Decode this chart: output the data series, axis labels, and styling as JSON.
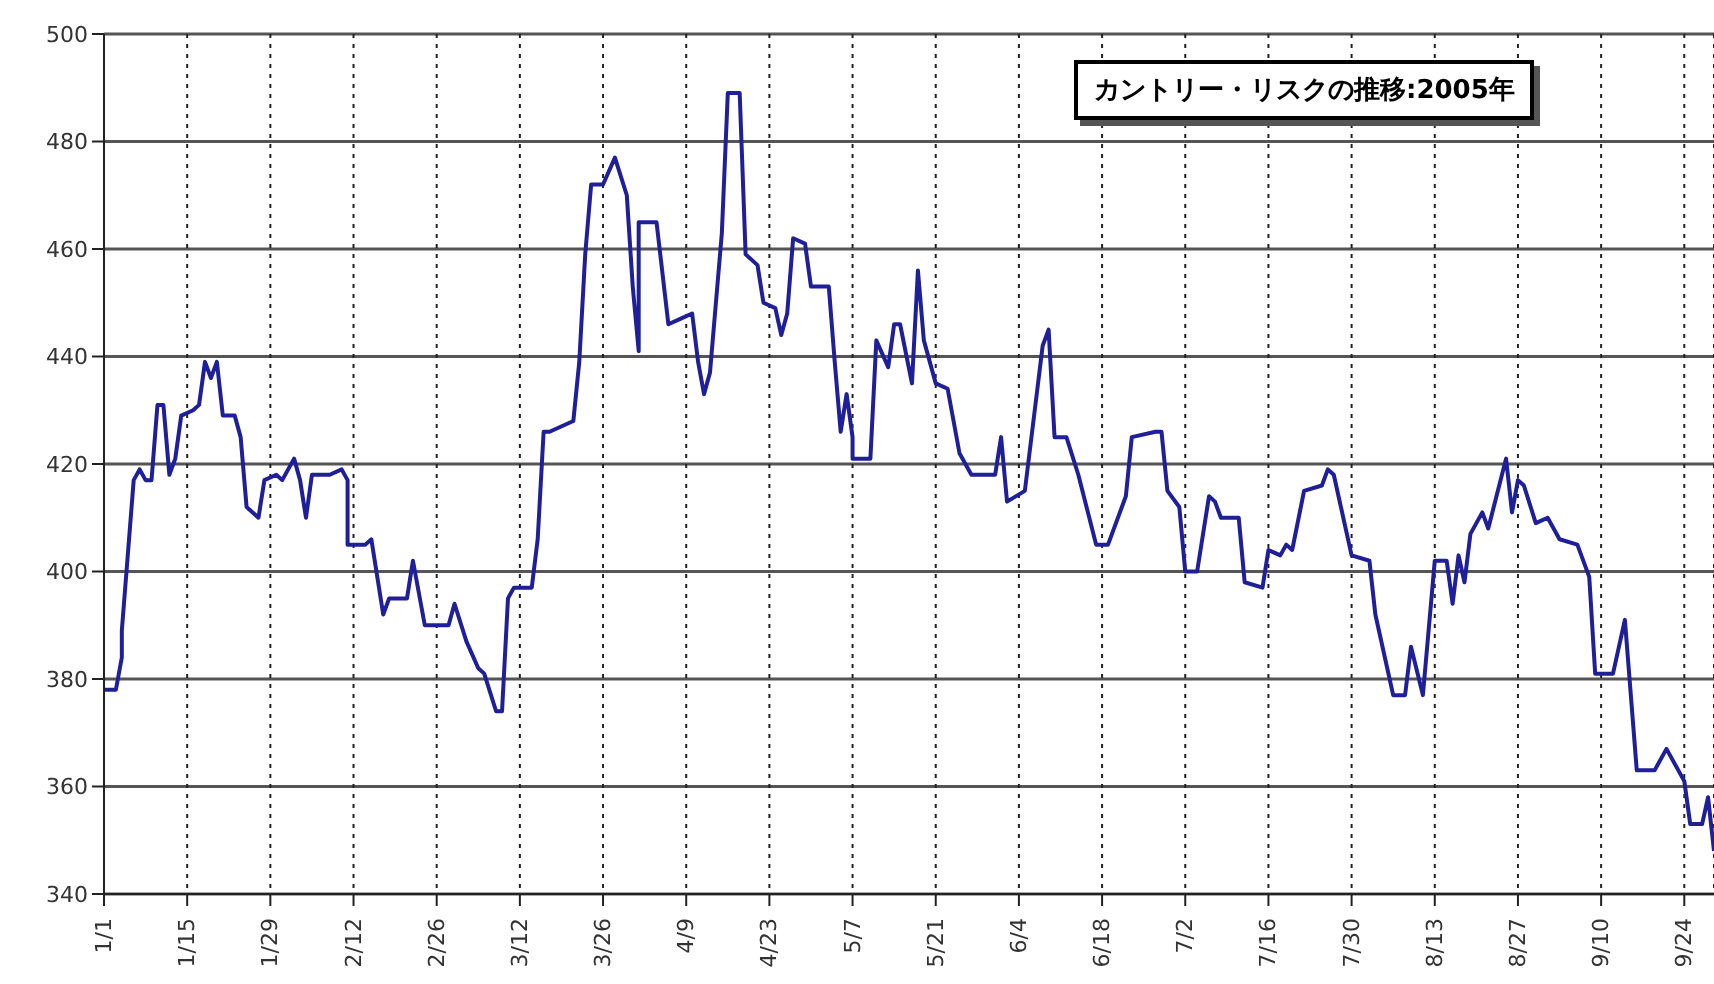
{
  "chart_data": {
    "type": "line",
    "title": "カントリー・リスクの推移:2005年",
    "x": [
      "--01-01",
      "--01-03",
      "--01-04",
      "--01-04",
      "--01-06",
      "--01-07",
      "--01-08",
      "--01-09",
      "--01-10",
      "--01-11",
      "--01-12",
      "--01-13",
      "--01-14",
      "--01-16",
      "--01-17",
      "--01-18",
      "--01-19",
      "--01-20",
      "--01-21",
      "--01-23",
      "--01-24",
      "--01-25",
      "--01-27",
      "--01-28",
      "--01-30",
      "--01-31",
      "--02-02",
      "--02-03",
      "--02-04",
      "--02-05",
      "--02-08",
      "--02-10",
      "--02-11",
      "--02-11",
      "--02-14",
      "--02-15",
      "--02-17",
      "--02-18",
      "--02-21",
      "--02-22",
      "--02-24",
      "--02-28",
      "--03-01",
      "--03-03",
      "--03-05",
      "--03-06",
      "--03-08",
      "--03-09",
      "--03-10",
      "--03-11",
      "--03-14",
      "--03-15",
      "--03-16",
      "--03-17",
      "--03-21",
      "--03-22",
      "--03-23",
      "--03-24",
      "--03-26",
      "--03-28",
      "--03-30",
      "--03-31",
      "--04-01",
      "--04-01",
      "--04-04",
      "--04-06",
      "--04-08",
      "--04-10",
      "--04-11",
      "--04-12",
      "--04-13",
      "--04-15",
      "--04-16",
      "--04-18",
      "--04-19",
      "--04-21",
      "--04-22",
      "--04-24",
      "--04-25",
      "--04-26",
      "--04-27",
      "--04-29",
      "--04-30",
      "--05-03",
      "--05-04",
      "--05-05",
      "--05-06",
      "--05-07",
      "--05-07",
      "--05-10",
      "--05-11",
      "--05-13",
      "--05-14",
      "--05-15",
      "--05-17",
      "--05-18",
      "--05-19",
      "--05-21",
      "--05-23",
      "--05-25",
      "--05-27",
      "--05-31",
      "--06-01",
      "--06-02",
      "--06-05",
      "--06-07",
      "--06-08",
      "--06-09",
      "--06-10",
      "--06-12",
      "--06-14",
      "--06-17",
      "--06-19",
      "--06-22",
      "--06-23",
      "--06-27",
      "--06-28",
      "--06-29",
      "--07-01",
      "--07-02",
      "--07-04",
      "--07-06",
      "--07-07",
      "--07-08",
      "--07-11",
      "--07-12",
      "--07-15",
      "--07-16",
      "--07-18",
      "--07-19",
      "--07-20",
      "--07-22",
      "--07-25",
      "--07-26",
      "--07-27",
      "--07-30",
      "--08-02",
      "--08-03",
      "--08-06",
      "--08-08",
      "--08-09",
      "--08-11",
      "--08-13",
      "--08-15",
      "--08-16",
      "--08-17",
      "--08-18",
      "--08-19",
      "--08-21",
      "--08-22",
      "--08-25",
      "--08-26",
      "--08-27",
      "--08-28",
      "--08-30",
      "--09-01",
      "--09-03",
      "--09-06",
      "--09-08",
      "--09-09",
      "--09-12",
      "--09-14",
      "--09-16",
      "--09-19",
      "--09-21",
      "--09-24",
      "--09-25",
      "--09-27",
      "--09-28",
      "--09-29"
    ],
    "series": [
      {
        "color": "#1f1f99",
        "values": [
          378,
          378,
          384,
          389,
          417,
          419,
          417,
          417,
          431,
          431,
          418,
          421,
          429,
          430,
          431,
          439,
          436,
          439,
          429,
          429,
          425,
          412,
          410,
          417,
          418,
          417,
          421,
          417,
          410,
          418,
          418,
          419,
          417,
          405,
          405,
          406,
          392,
          395,
          395,
          402,
          390,
          390,
          394,
          387,
          382,
          381,
          374,
          374,
          395,
          397,
          397,
          406,
          426,
          426,
          428,
          439,
          459,
          472,
          472,
          477,
          470,
          453,
          441,
          465,
          465,
          446,
          447,
          448,
          439,
          433,
          437,
          463,
          489,
          489,
          459,
          457,
          450,
          449,
          444,
          448,
          462,
          461,
          453,
          453,
          439,
          426,
          433,
          425,
          421,
          421,
          443,
          438,
          446,
          446,
          435,
          456,
          443,
          435,
          434,
          422,
          418,
          418,
          425,
          413,
          415,
          433,
          442,
          445,
          425,
          425,
          418,
          405,
          405,
          414,
          425,
          426,
          426,
          415,
          412,
          400,
          400,
          414,
          413,
          410,
          410,
          398,
          397,
          404,
          403,
          405,
          404,
          415,
          416,
          419,
          418,
          403,
          402,
          392,
          377,
          377,
          386,
          377,
          402,
          402,
          394,
          403,
          398,
          407,
          411,
          408,
          421,
          411,
          417,
          416,
          409,
          410,
          406,
          405,
          399,
          381,
          381,
          391,
          363,
          363,
          367,
          361,
          353,
          353,
          358,
          348
        ]
      }
    ],
    "xlim": [
      "--01-01",
      "--09-29"
    ],
    "xticks": [
      {
        "value": "--01-01",
        "label": "1/1"
      },
      {
        "value": "--01-15",
        "label": "1/15"
      },
      {
        "value": "--01-29",
        "label": "1/29"
      },
      {
        "value": "--02-12",
        "label": "2/12"
      },
      {
        "value": "--02-26",
        "label": "2/26"
      },
      {
        "value": "--03-12",
        "label": "3/12"
      },
      {
        "value": "--03-26",
        "label": "3/26"
      },
      {
        "value": "--04-09",
        "label": "4/9"
      },
      {
        "value": "--04-23",
        "label": "4/23"
      },
      {
        "value": "--05-07",
        "label": "5/7"
      },
      {
        "value": "--05-21",
        "label": "5/21"
      },
      {
        "value": "--06-04",
        "label": "6/4"
      },
      {
        "value": "--06-18",
        "label": "6/18"
      },
      {
        "value": "--07-02",
        "label": "7/2"
      },
      {
        "value": "--07-16",
        "label": "7/16"
      },
      {
        "value": "--07-30",
        "label": "7/30"
      },
      {
        "value": "--08-13",
        "label": "8/13"
      },
      {
        "value": "--08-27",
        "label": "8/27"
      },
      {
        "value": "--09-10",
        "label": "9/10"
      },
      {
        "value": "--09-24",
        "label": "9/24"
      }
    ],
    "ylim": [
      340,
      500
    ],
    "yticks": [
      340,
      360,
      380,
      400,
      420,
      440,
      460,
      480,
      500
    ],
    "grid": true,
    "marker": "none",
    "line_style": "solid"
  }
}
